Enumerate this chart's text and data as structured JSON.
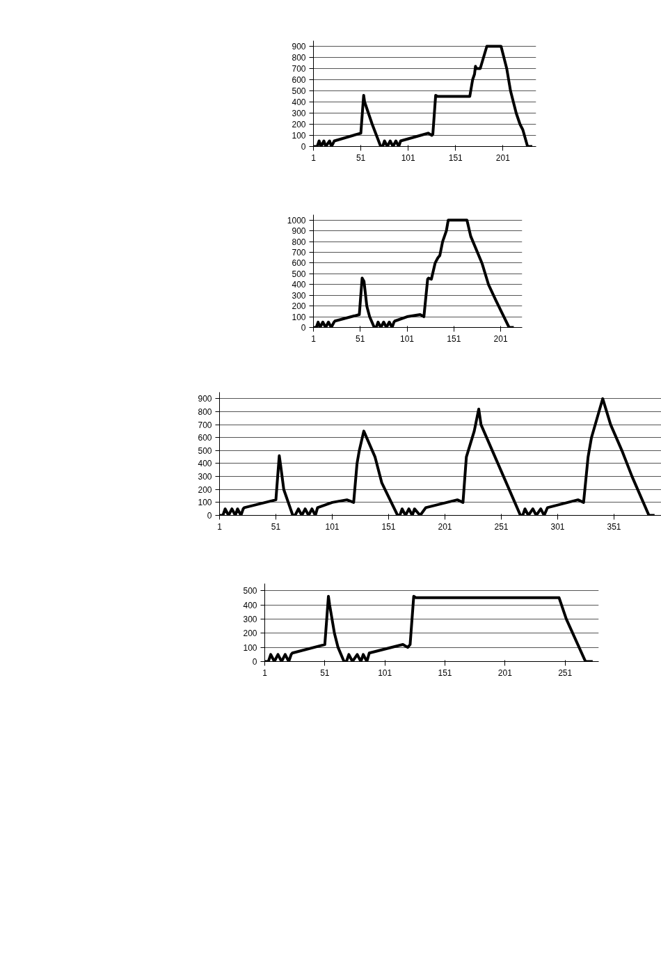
{
  "chart_data": [
    {
      "type": "line",
      "color": "#000000",
      "grid": "y",
      "xlim": [
        1,
        236
      ],
      "ylim": [
        0,
        950
      ],
      "xticks": [
        1,
        51,
        101,
        151,
        201
      ],
      "yticks": [
        0,
        100,
        200,
        300,
        400,
        500,
        600,
        700,
        800,
        900
      ],
      "x": [
        1,
        5,
        7,
        9,
        12,
        14,
        18,
        20,
        23,
        51,
        54,
        55,
        57,
        63,
        72,
        74,
        76,
        79,
        82,
        85,
        88,
        91,
        93,
        114,
        122,
        126,
        127,
        130,
        132,
        166,
        169,
        171,
        172,
        173,
        177,
        184,
        199,
        205,
        209,
        215,
        219,
        222,
        227,
        232
      ],
      "values": [
        0,
        0,
        50,
        0,
        50,
        0,
        50,
        0,
        50,
        120,
        460,
        400,
        350,
        200,
        0,
        0,
        50,
        0,
        50,
        0,
        50,
        0,
        50,
        100,
        120,
        100,
        110,
        460,
        450,
        450,
        600,
        650,
        720,
        700,
        700,
        900,
        900,
        700,
        500,
        300,
        200,
        150,
        0,
        0
      ]
    },
    {
      "type": "line",
      "color": "#000000",
      "grid": "y",
      "xlim": [
        1,
        224
      ],
      "ylim": [
        0,
        1050
      ],
      "xticks": [
        1,
        51,
        101,
        151,
        201
      ],
      "yticks": [
        0,
        100,
        200,
        300,
        400,
        500,
        600,
        700,
        800,
        900,
        1000
      ],
      "x": [
        1,
        4,
        6,
        8,
        11,
        14,
        17,
        20,
        23,
        24,
        50,
        53,
        55,
        58,
        61,
        66,
        68,
        70,
        73,
        76,
        79,
        82,
        85,
        87,
        88,
        101,
        115,
        119,
        123,
        124,
        127,
        131,
        134,
        136,
        139,
        143,
        145,
        165,
        169,
        181,
        188,
        196,
        210,
        215
      ],
      "values": [
        0,
        0,
        50,
        0,
        50,
        0,
        50,
        0,
        50,
        60,
        120,
        460,
        430,
        200,
        100,
        0,
        0,
        50,
        0,
        50,
        0,
        50,
        0,
        50,
        60,
        100,
        120,
        100,
        450,
        460,
        450,
        600,
        650,
        670,
        800,
        900,
        1000,
        1000,
        850,
        600,
        400,
        250,
        0,
        0
      ]
    },
    {
      "type": "line",
      "color": "#000000",
      "grid": "y",
      "xlim": [
        1,
        393
      ],
      "ylim": [
        0,
        950
      ],
      "xticks": [
        1,
        51,
        101,
        151,
        201,
        251,
        301,
        351
      ],
      "yticks": [
        0,
        100,
        200,
        300,
        400,
        500,
        600,
        700,
        800,
        900
      ],
      "x": [
        1,
        4,
        6,
        9,
        12,
        15,
        17,
        20,
        22,
        23,
        51,
        54,
        55,
        58,
        62,
        66,
        68,
        71,
        74,
        77,
        80,
        83,
        86,
        88,
        101,
        114,
        120,
        123,
        125,
        129,
        139,
        145,
        159,
        161,
        163,
        166,
        169,
        172,
        174,
        179,
        184,
        212,
        217,
        220,
        227,
        231,
        233,
        243,
        253,
        268,
        270,
        272,
        275,
        279,
        282,
        286,
        289,
        292,
        319,
        324,
        328,
        331,
        341,
        348,
        358,
        367,
        382,
        387
      ],
      "values": [
        0,
        0,
        50,
        0,
        50,
        0,
        50,
        0,
        50,
        60,
        120,
        460,
        400,
        200,
        100,
        0,
        0,
        50,
        0,
        50,
        0,
        50,
        0,
        60,
        100,
        120,
        100,
        400,
        500,
        650,
        450,
        250,
        0,
        0,
        50,
        0,
        50,
        0,
        50,
        0,
        60,
        120,
        100,
        450,
        650,
        820,
        700,
        500,
        300,
        0,
        0,
        50,
        0,
        50,
        0,
        50,
        0,
        60,
        120,
        100,
        450,
        600,
        900,
        700,
        500,
        300,
        0,
        0
      ]
    },
    {
      "type": "line",
      "color": "#000000",
      "grid": "y",
      "xlim": [
        1,
        279
      ],
      "ylim": [
        0,
        550
      ],
      "xticks": [
        1,
        51,
        101,
        151,
        201,
        251
      ],
      "yticks": [
        0,
        100,
        200,
        300,
        400,
        500
      ],
      "x": [
        1,
        4,
        6,
        9,
        12,
        15,
        18,
        21,
        23,
        24,
        51,
        54,
        55,
        59,
        62,
        67,
        69,
        71,
        74,
        78,
        81,
        83,
        86,
        88,
        116,
        120,
        122,
        125,
        127,
        246,
        252,
        268,
        274
      ],
      "values": [
        0,
        0,
        50,
        0,
        50,
        0,
        50,
        0,
        50,
        60,
        120,
        460,
        400,
        200,
        100,
        0,
        0,
        50,
        0,
        50,
        0,
        50,
        0,
        60,
        120,
        100,
        120,
        460,
        450,
        450,
        300,
        0,
        0
      ]
    }
  ]
}
